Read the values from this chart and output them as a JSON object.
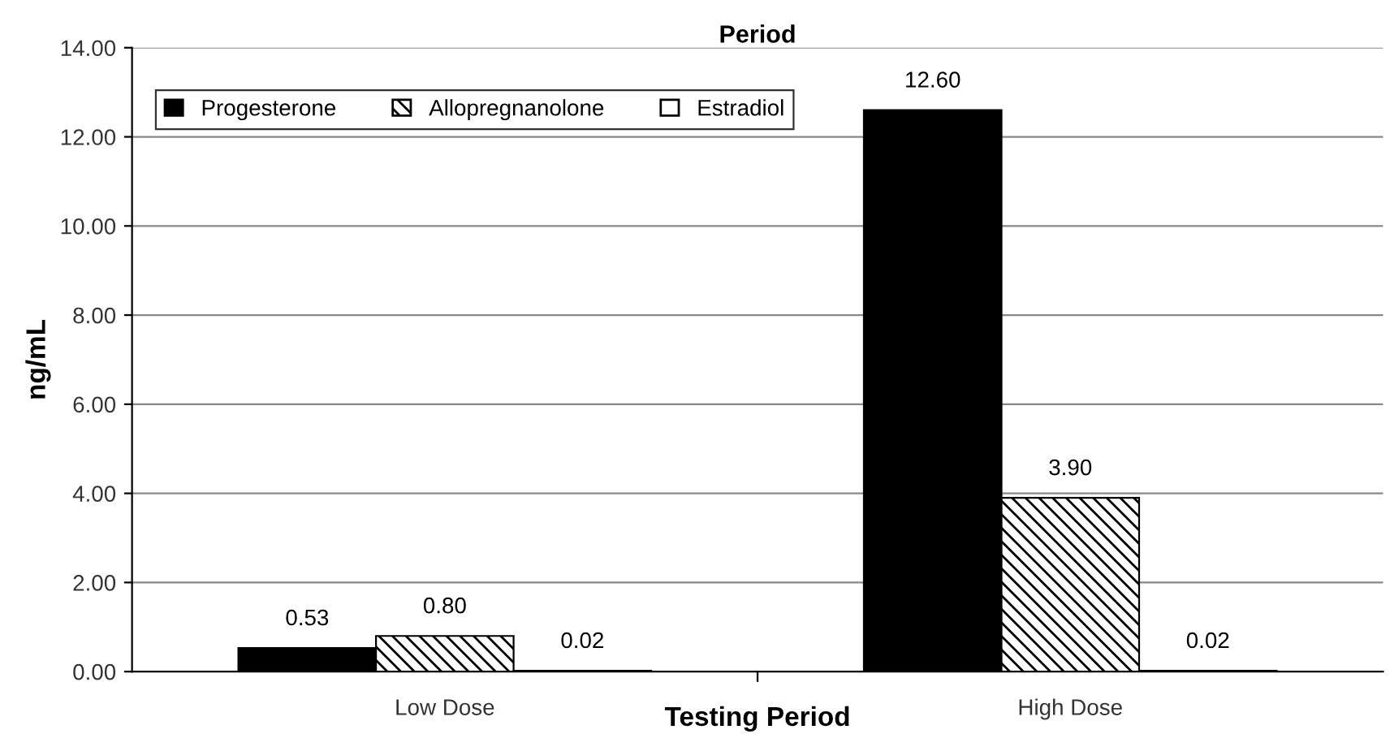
{
  "chart_data": {
    "type": "bar",
    "title": "Period",
    "xlabel": "Testing Period",
    "ylabel": "ng/mL",
    "categories": [
      "Low Dose",
      "High Dose"
    ],
    "series": [
      {
        "name": "Progesterone",
        "color": "#000000",
        "values": [
          0.53,
          12.6
        ],
        "value_labels": [
          "0.53",
          "12.60"
        ]
      },
      {
        "name": "Allopregnanolone",
        "color": "#000000",
        "values": [
          0.8,
          3.9
        ],
        "value_labels": [
          "0.80",
          "3.90"
        ]
      },
      {
        "name": "Estradiol",
        "color": "#ffffff",
        "values": [
          0.02,
          0.02
        ],
        "value_labels": [
          "0.02",
          "0.02"
        ]
      }
    ],
    "ylim": [
      0,
      14
    ],
    "yticks": [
      {
        "value": 0,
        "label": "0.00"
      },
      {
        "value": 2,
        "label": "2.00"
      },
      {
        "value": 4,
        "label": "4.00"
      },
      {
        "value": 6,
        "label": "6.00"
      },
      {
        "value": 8,
        "label": "8.00"
      },
      {
        "value": 10,
        "label": "10.00"
      },
      {
        "value": 12,
        "label": "12.00"
      },
      {
        "value": 14,
        "label": "14.00"
      }
    ],
    "grid": "y",
    "legend": "top left"
  }
}
